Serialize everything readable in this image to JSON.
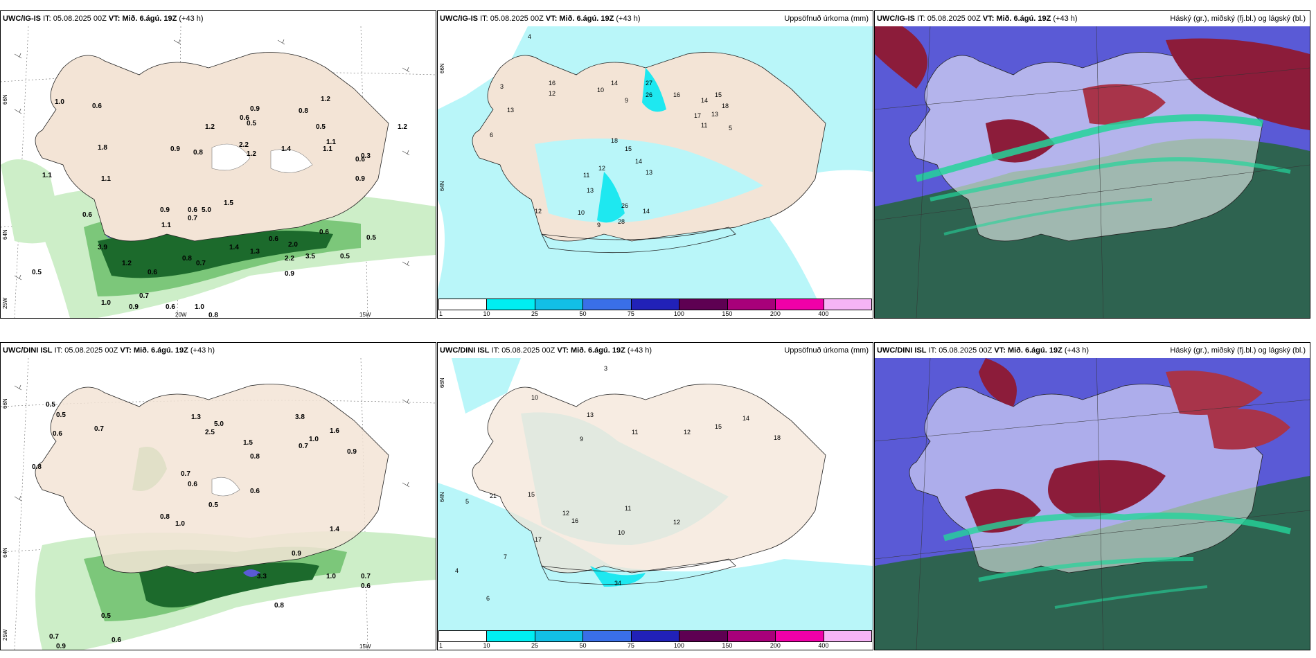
{
  "panels": [
    {
      "id": "r1c1",
      "model": "UWC/IG-IS",
      "it_label": "IT:",
      "it_value": "05.08.2025 00Z",
      "vt_label": "VT:",
      "vt_value": "Mið. 6.ágú. 19Z",
      "lead": "(+43 h)",
      "right_title": "",
      "axis_labels": [
        "66N",
        "64N",
        "25W",
        "20W",
        "15W"
      ],
      "values": [
        "1.0",
        "0.6",
        "1.8",
        "0.9",
        "0.8",
        "1.2",
        "0.9",
        "0.6",
        "0.5",
        "0.8",
        "1.2",
        "1.1",
        "0.5",
        "0.3",
        "1.4",
        "2.2",
        "1.2",
        "1.1",
        "1.1",
        "1.2",
        "0.6",
        "0.9",
        "1.1",
        "0.6",
        "0.6",
        "5.0",
        "1.5",
        "0.9",
        "0.7",
        "1.1",
        "0.6",
        "0.5",
        "0.6",
        "2.0",
        "0.8",
        "0.7",
        "0.6",
        "1.2",
        "0.5",
        "3.9",
        "0.5",
        "1.3",
        "0.9",
        "1.0",
        "0.9",
        "0.7",
        "1.0",
        "0.8",
        "0.6",
        "2.2",
        "3.5",
        "1.4"
      ]
    },
    {
      "id": "r1c2",
      "model": "UWC/IG-IS",
      "it_label": "IT:",
      "it_value": "05.08.2025 00Z",
      "vt_label": "VT:",
      "vt_value": "Mið. 6.ágú. 19Z",
      "lead": "(+43 h)",
      "right_title": "Uppsöfnuð úrkoma (mm)",
      "axis_labels": [
        "66N",
        "64N"
      ],
      "values": [
        "4",
        "3",
        "6",
        "16",
        "12",
        "13",
        "10",
        "14",
        "9",
        "27",
        "26",
        "16",
        "14",
        "18",
        "15",
        "13",
        "17",
        "11",
        "5",
        "18",
        "15",
        "14",
        "12",
        "13",
        "11",
        "13",
        "26",
        "28",
        "14",
        "9",
        "10",
        "12"
      ],
      "legend": [
        "1",
        "10",
        "25",
        "50",
        "75",
        "100",
        "150",
        "200",
        "400"
      ]
    },
    {
      "id": "r1c3",
      "model": "UWC/IG-IS",
      "it_label": "IT:",
      "it_value": "05.08.2025 00Z",
      "vt_label": "VT:",
      "vt_value": "Mið. 6.ágú. 19Z",
      "lead": "(+43 h)",
      "right_title": "Háský (gr.), miðský (fj.bl.) og lágský (bl.)"
    },
    {
      "id": "r2c1",
      "model": "UWC/DINI ISL",
      "it_label": "IT:",
      "it_value": "05.08.2025 00Z",
      "vt_label": "VT:",
      "vt_value": "Mið. 6.ágú. 19Z",
      "lead": "(+43 h)",
      "right_title": "",
      "axis_labels": [
        "66N",
        "64N",
        "25W",
        "15W"
      ],
      "values": [
        "0.5",
        "0.5",
        "0.6",
        "0.8",
        "0.7",
        "1.3",
        "2.5",
        "5.0",
        "3.8",
        "0.7",
        "1.0",
        "1.6",
        "0.9",
        "1.5",
        "0.8",
        "0.7",
        "0.6",
        "0.5",
        "0.6",
        "1.4",
        "0.8",
        "1.0",
        "0.9",
        "3.3",
        "1.0",
        "0.8",
        "0.7",
        "0.6",
        "0.5",
        "0.7",
        "0.9",
        "0.6"
      ]
    },
    {
      "id": "r2c2",
      "model": "UWC/DINI ISL",
      "it_label": "IT:",
      "it_value": "05.08.2025 00Z",
      "vt_label": "VT:",
      "vt_value": "Mið. 6.ágú. 19Z",
      "lead": "(+43 h)",
      "right_title": "Uppsöfnuð úrkoma (mm)",
      "axis_labels": [
        "66N",
        "64N"
      ],
      "values": [
        "3",
        "10",
        "12",
        "13",
        "11",
        "9",
        "21",
        "15",
        "17",
        "12",
        "16",
        "11",
        "14",
        "15",
        "18",
        "10",
        "34",
        "7",
        "5",
        "4",
        "6",
        "12"
      ],
      "legend": [
        "1",
        "10",
        "25",
        "50",
        "75",
        "100",
        "150",
        "200",
        "400"
      ]
    },
    {
      "id": "r2c3",
      "model": "UWC/DINI ISL",
      "it_label": "IT:",
      "it_value": "05.08.2025 00Z",
      "vt_label": "VT:",
      "vt_value": "Mið. 6.ágú. 19Z",
      "lead": "(+43 h)",
      "right_title": "Háský (gr.), miðský (fj.bl.) og lágský (bl.)"
    }
  ],
  "colors": {
    "land": "#f3e4d6",
    "sea_white": "#ffffff",
    "precip_light": "#b9f6f9",
    "precip_mid": "#1ee8f0",
    "green_light": "#cdeec8",
    "green_mid": "#7cc77a",
    "green_dark": "#1c6a2c",
    "cloud_low": "#2e6350",
    "cloud_mid": "#5a5ad6",
    "cloud_high": "#8c1c3a",
    "cloud_green": "#24d49a"
  },
  "legend_colors": [
    "#ffffff",
    "#00eef2",
    "#12bfe6",
    "#3a6fe8",
    "#2121b8",
    "#5e0052",
    "#a8007a",
    "#f000a8",
    "#f6b4f6"
  ]
}
